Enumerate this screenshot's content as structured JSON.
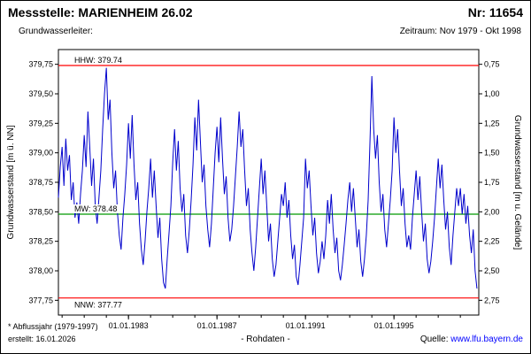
{
  "header": {
    "title": "Messstelle: MARIENHEIM 26.02",
    "number": "Nr: 11654",
    "aquifer_label": "Grundwasserleiter:",
    "period": "Zeitraum: Nov 1979 - Okt 1998"
  },
  "footer": {
    "footnote": "* Abflussjahr (1979-1997)",
    "created": "erstellt: 16.01.2026",
    "data_type": "- Rohdaten -",
    "source_label": "Quelle:",
    "source_url": "www.lfu.bayern.de"
  },
  "colors": {
    "series": "#0000cc",
    "hhw_line": "#ff0000",
    "mw_line": "#009900",
    "nnw_line": "#ff0000",
    "url": "#0000ff"
  },
  "chart_data": {
    "type": "line",
    "title": "",
    "grid": false,
    "legend": "none",
    "y_left": {
      "label": "Grundwasserstand [m ü. NN]",
      "range": [
        377.625,
        379.875
      ],
      "ticks": [
        {
          "v": 377.75,
          "label": "377,75"
        },
        {
          "v": 378.0,
          "label": "378,00"
        },
        {
          "v": 378.25,
          "label": "378,25"
        },
        {
          "v": 378.5,
          "label": "378,50"
        },
        {
          "v": 378.75,
          "label": "378,75"
        },
        {
          "v": 379.0,
          "label": "379,00"
        },
        {
          "v": 379.25,
          "label": "379,25"
        },
        {
          "v": 379.5,
          "label": "379,50"
        },
        {
          "v": 379.75,
          "label": "379,75"
        }
      ]
    },
    "y_right": {
      "label": "Grundwasserstand [m u. Gelände]",
      "ticks": [
        {
          "at": 379.75,
          "label": "0,75"
        },
        {
          "at": 379.5,
          "label": "1,00"
        },
        {
          "at": 379.25,
          "label": "1,25"
        },
        {
          "at": 379.0,
          "label": "1,50"
        },
        {
          "at": 378.75,
          "label": "1,75"
        },
        {
          "at": 378.5,
          "label": "2,00"
        },
        {
          "at": 378.25,
          "label": "2,25"
        },
        {
          "at": 378.0,
          "label": "2,50"
        },
        {
          "at": 377.75,
          "label": "2,75"
        }
      ]
    },
    "x": {
      "range": [
        1979.8333,
        1998.8333
      ],
      "ticks": [
        {
          "at": 1983,
          "label": "01.01.1983"
        },
        {
          "at": 1987,
          "label": "01.01.1987"
        },
        {
          "at": 1991,
          "label": "01.01.1991"
        },
        {
          "at": 1995,
          "label": "01.01.1995"
        }
      ],
      "minor_ticks_yearly": true
    },
    "ref_lines": [
      {
        "name": "HHW",
        "label": "HHW: 379.74",
        "value": 379.74,
        "color": "#ff0000",
        "label_pos": "above"
      },
      {
        "name": "MW",
        "label": "MW: 378.48",
        "value": 378.48,
        "color": "#009900",
        "label_pos": "above"
      },
      {
        "name": "NNW",
        "label": "NNW: 377.77",
        "value": 377.77,
        "color": "#ff0000",
        "label_pos": "below"
      }
    ],
    "series": [
      {
        "name": "Grundwasserstand Rohdaten",
        "color": "#0000cc",
        "start_year": 1979.8333,
        "points_per_year": 12,
        "values": [
          378.62,
          378.88,
          379.05,
          378.72,
          379.12,
          378.85,
          378.98,
          378.6,
          378.75,
          378.45,
          378.58,
          378.4,
          378.65,
          378.85,
          379.15,
          378.88,
          379.35,
          379.05,
          378.72,
          378.95,
          378.55,
          378.4,
          378.62,
          378.85,
          379.2,
          379.5,
          379.72,
          379.28,
          379.45,
          379.0,
          378.7,
          378.85,
          378.5,
          378.3,
          378.18,
          378.45,
          378.65,
          378.9,
          379.25,
          378.95,
          379.32,
          378.9,
          378.6,
          378.75,
          378.4,
          378.18,
          378.05,
          378.25,
          378.5,
          378.7,
          378.95,
          378.62,
          378.85,
          378.55,
          378.28,
          378.45,
          378.1,
          377.9,
          377.85,
          378.1,
          378.32,
          378.55,
          378.92,
          379.2,
          378.85,
          379.1,
          378.7,
          378.5,
          378.65,
          378.3,
          378.15,
          378.35,
          378.6,
          378.9,
          379.3,
          379.02,
          379.45,
          379.1,
          378.75,
          378.9,
          378.55,
          378.35,
          378.2,
          378.4,
          378.7,
          379.0,
          379.22,
          378.92,
          379.3,
          378.95,
          378.65,
          378.8,
          378.45,
          378.25,
          378.35,
          378.55,
          378.8,
          379.05,
          379.35,
          379.05,
          379.2,
          378.85,
          378.55,
          378.7,
          378.35,
          378.15,
          378.0,
          378.2,
          378.45,
          378.7,
          378.95,
          378.65,
          378.85,
          378.55,
          378.25,
          378.4,
          378.1,
          377.95,
          378.05,
          378.25,
          378.45,
          378.65,
          378.55,
          378.75,
          378.45,
          378.6,
          378.3,
          378.1,
          378.22,
          377.95,
          377.88,
          378.05,
          378.25,
          378.45,
          378.95,
          378.7,
          378.85,
          378.55,
          378.3,
          378.45,
          378.15,
          377.98,
          378.08,
          378.25,
          378.1,
          378.3,
          378.6,
          378.4,
          378.65,
          378.35,
          378.15,
          378.28,
          378.0,
          377.92,
          378.05,
          378.22,
          378.4,
          378.6,
          378.75,
          378.5,
          378.7,
          378.45,
          378.2,
          378.35,
          378.08,
          377.95,
          378.1,
          378.3,
          378.6,
          379.1,
          379.65,
          379.2,
          378.95,
          379.15,
          378.75,
          378.5,
          378.65,
          378.35,
          378.2,
          378.4,
          378.6,
          378.85,
          379.3,
          379.0,
          379.2,
          378.85,
          378.55,
          378.7,
          378.4,
          378.2,
          378.3,
          378.18,
          378.45,
          378.65,
          378.85,
          378.6,
          378.8,
          378.5,
          378.25,
          378.4,
          378.1,
          377.98,
          378.08,
          378.25,
          378.45,
          378.7,
          378.95,
          378.7,
          378.9,
          378.6,
          378.35,
          378.5,
          378.2,
          378.05,
          378.3,
          378.5,
          378.7,
          378.55,
          378.7,
          378.48,
          378.65,
          378.4,
          378.55,
          378.3,
          378.15,
          378.35,
          378.0,
          377.85
        ]
      }
    ]
  }
}
